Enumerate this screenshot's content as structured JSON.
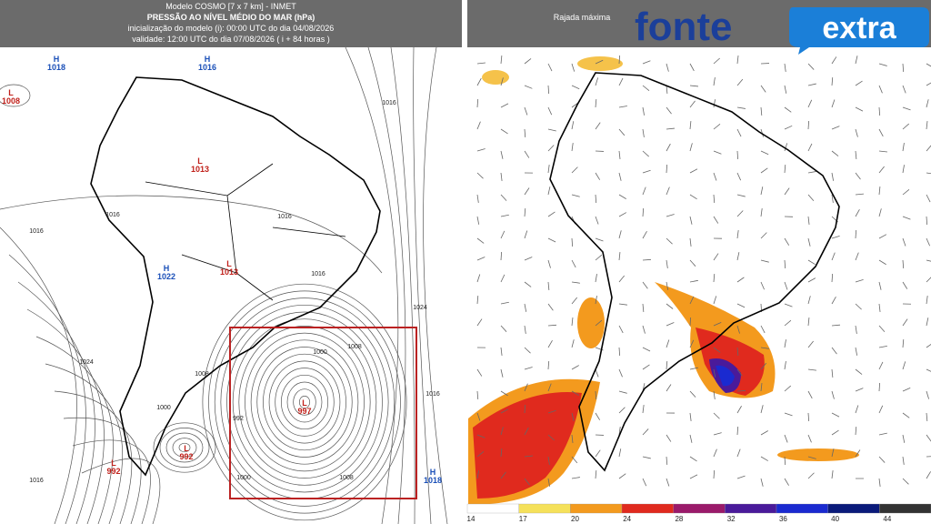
{
  "left_panel": {
    "header": [
      "Modelo COSMO [7 x 7 km] - INMET",
      "PRESSÃO AO NÍVEL MÉDIO DO MAR (hPa)",
      "inicialização do modelo (i): 00:00 UTC do dia 04/08/2026",
      "validade: 12:00 UTC do dia 07/08/2026 ( i + 84 horas )"
    ],
    "pressure_centers": [
      {
        "label": "H",
        "value": 1018
      },
      {
        "label": "H",
        "value": 1016
      },
      {
        "label": "L",
        "value": 1008
      },
      {
        "label": "L",
        "value": 1013
      },
      {
        "label": "H",
        "value": 1022
      },
      {
        "label": "L",
        "value": 1013
      },
      {
        "label": "L",
        "value": 997
      },
      {
        "label": "L",
        "value": 992
      },
      {
        "label": "L",
        "value": 992
      },
      {
        "label": "H",
        "value": 1018
      }
    ],
    "isobar_labels": [
      1016,
      1016,
      1016,
      1016,
      1024,
      1008,
      1000,
      992,
      1000,
      1008,
      1024,
      1016,
      1000,
      1008,
      1016,
      1016
    ]
  },
  "right_panel": {
    "header": "Rajada máxima",
    "colorbar": [
      14,
      17,
      20,
      24,
      28,
      32,
      36,
      40,
      44
    ]
  },
  "logo": {
    "part1": "fonte",
    "part2": "extra"
  }
}
